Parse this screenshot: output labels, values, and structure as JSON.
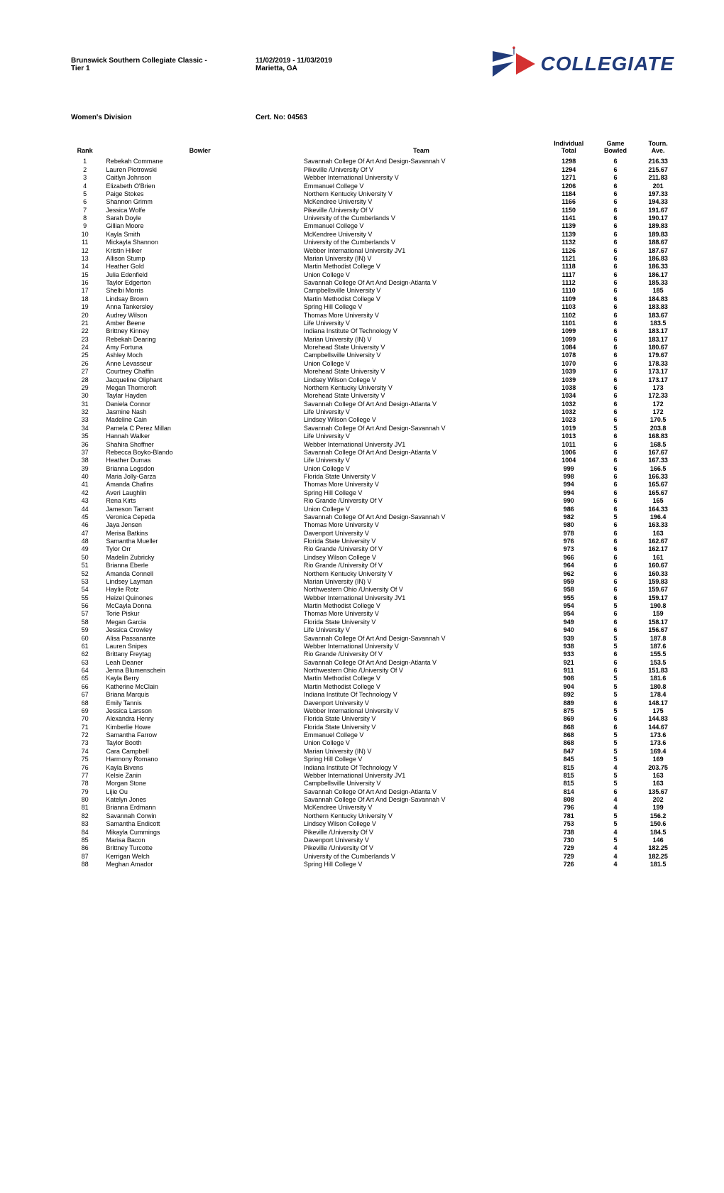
{
  "header": {
    "event_name_left": "Brunswick Southern Collegiate Classic -",
    "event_dates": "11/02/2019 - 11/03/2019",
    "tier_left": "Tier 1",
    "location": "Marietta, GA",
    "division": "Women's Division",
    "cert_label": "Cert. No: 04563",
    "logo_text": "COLLEGIATE"
  },
  "cols": {
    "rank": "Rank",
    "bowler": "Bowler",
    "team": "Team",
    "total_l1": "Individual",
    "total_l2": "Total",
    "games_l1": "Game",
    "games_l2": "Bowled",
    "ave_l1": "Tourn.",
    "ave_l2": "Ave."
  },
  "rows": [
    {
      "r": "1",
      "b": "Rebekah Commane",
      "t": "Savannah College Of Art And Design-Savannah V",
      "tot": "1298",
      "g": "6",
      "a": "216.33"
    },
    {
      "r": "2",
      "b": "Lauren Piotrowski",
      "t": "Pikeville /University Of V",
      "tot": "1294",
      "g": "6",
      "a": "215.67"
    },
    {
      "r": "3",
      "b": "Caitlyn Johnson",
      "t": "Webber International University V",
      "tot": "1271",
      "g": "6",
      "a": "211.83"
    },
    {
      "r": "4",
      "b": "Elizabeth O'Brien",
      "t": "Emmanuel College V",
      "tot": "1206",
      "g": "6",
      "a": "201"
    },
    {
      "r": "5",
      "b": "Paige Stokes",
      "t": "Northern Kentucky University V",
      "tot": "1184",
      "g": "6",
      "a": "197.33"
    },
    {
      "r": "6",
      "b": "Shannon Grimm",
      "t": "McKendree University V",
      "tot": "1166",
      "g": "6",
      "a": "194.33"
    },
    {
      "r": "7",
      "b": "Jessica Wolfe",
      "t": "Pikeville /University Of V",
      "tot": "1150",
      "g": "6",
      "a": "191.67"
    },
    {
      "r": "8",
      "b": "Sarah Doyle",
      "t": "University of the Cumberlands V",
      "tot": "1141",
      "g": "6",
      "a": "190.17"
    },
    {
      "r": "9",
      "b": "Gillian Moore",
      "t": "Emmanuel College V",
      "tot": "1139",
      "g": "6",
      "a": "189.83"
    },
    {
      "r": "10",
      "b": "Kayla Smith",
      "t": "McKendree University V",
      "tot": "1139",
      "g": "6",
      "a": "189.83"
    },
    {
      "r": "11",
      "b": "Mickayla Shannon",
      "t": "University of the Cumberlands V",
      "tot": "1132",
      "g": "6",
      "a": "188.67"
    },
    {
      "r": "12",
      "b": "Kristin Hilker",
      "t": "Webber International University JV1",
      "tot": "1126",
      "g": "6",
      "a": "187.67"
    },
    {
      "r": "13",
      "b": "Allison Stump",
      "t": "Marian University (IN) V",
      "tot": "1121",
      "g": "6",
      "a": "186.83"
    },
    {
      "r": "14",
      "b": "Heather Gold",
      "t": "Martin Methodist College V",
      "tot": "1118",
      "g": "6",
      "a": "186.33"
    },
    {
      "r": "15",
      "b": "Julia Edenfield",
      "t": "Union College V",
      "tot": "1117",
      "g": "6",
      "a": "186.17"
    },
    {
      "r": "16",
      "b": "Taylor Edgerton",
      "t": "Savannah College Of Art And Design-Atlanta V",
      "tot": "1112",
      "g": "6",
      "a": "185.33"
    },
    {
      "r": "17",
      "b": "Shelbi Morris",
      "t": "Campbellsville University V",
      "tot": "1110",
      "g": "6",
      "a": "185"
    },
    {
      "r": "18",
      "b": "Lindsay Brown",
      "t": "Martin Methodist College V",
      "tot": "1109",
      "g": "6",
      "a": "184.83"
    },
    {
      "r": "19",
      "b": "Anna Tankersley",
      "t": "Spring Hill College V",
      "tot": "1103",
      "g": "6",
      "a": "183.83"
    },
    {
      "r": "20",
      "b": "Audrey Wilson",
      "t": "Thomas More University V",
      "tot": "1102",
      "g": "6",
      "a": "183.67"
    },
    {
      "r": "21",
      "b": "Amber Beene",
      "t": "Life University V",
      "tot": "1101",
      "g": "6",
      "a": "183.5"
    },
    {
      "r": "22",
      "b": "Brittney Kinney",
      "t": "Indiana Institute Of Technology V",
      "tot": "1099",
      "g": "6",
      "a": "183.17"
    },
    {
      "r": "23",
      "b": "Rebekah Dearing",
      "t": "Marian University (IN) V",
      "tot": "1099",
      "g": "6",
      "a": "183.17"
    },
    {
      "r": "24",
      "b": "Amy Fortuna",
      "t": "Morehead State University V",
      "tot": "1084",
      "g": "6",
      "a": "180.67"
    },
    {
      "r": "25",
      "b": "Ashley Moch",
      "t": "Campbellsville University V",
      "tot": "1078",
      "g": "6",
      "a": "179.67"
    },
    {
      "r": "26",
      "b": "Anne Levasseur",
      "t": "Union College V",
      "tot": "1070",
      "g": "6",
      "a": "178.33"
    },
    {
      "r": "27",
      "b": "Courtney Chaffin",
      "t": "Morehead State University V",
      "tot": "1039",
      "g": "6",
      "a": "173.17"
    },
    {
      "r": "28",
      "b": "Jacqueline Oliphant",
      "t": "Lindsey Wilson College V",
      "tot": "1039",
      "g": "6",
      "a": "173.17"
    },
    {
      "r": "29",
      "b": "Megan Thorncroft",
      "t": "Northern Kentucky University V",
      "tot": "1038",
      "g": "6",
      "a": "173"
    },
    {
      "r": "30",
      "b": "Taylar Hayden",
      "t": "Morehead State University V",
      "tot": "1034",
      "g": "6",
      "a": "172.33"
    },
    {
      "r": "31",
      "b": "Daniela Connor",
      "t": "Savannah College Of Art And Design-Atlanta V",
      "tot": "1032",
      "g": "6",
      "a": "172"
    },
    {
      "r": "32",
      "b": "Jasmine Nash",
      "t": "Life University V",
      "tot": "1032",
      "g": "6",
      "a": "172"
    },
    {
      "r": "33",
      "b": "Madeline Cain",
      "t": "Lindsey Wilson College V",
      "tot": "1023",
      "g": "6",
      "a": "170.5"
    },
    {
      "r": "34",
      "b": "Pamela C Perez Millan",
      "t": "Savannah College Of Art And Design-Savannah V",
      "tot": "1019",
      "g": "5",
      "a": "203.8"
    },
    {
      "r": "35",
      "b": "Hannah Walker",
      "t": "Life University V",
      "tot": "1013",
      "g": "6",
      "a": "168.83"
    },
    {
      "r": "36",
      "b": "Shahira Shoffner",
      "t": "Webber International University JV1",
      "tot": "1011",
      "g": "6",
      "a": "168.5"
    },
    {
      "r": "37",
      "b": "Rebecca Boyko-Blando",
      "t": "Savannah College Of Art And Design-Atlanta V",
      "tot": "1006",
      "g": "6",
      "a": "167.67"
    },
    {
      "r": "38",
      "b": "Heather Dumas",
      "t": "Life University V",
      "tot": "1004",
      "g": "6",
      "a": "167.33"
    },
    {
      "r": "39",
      "b": "Brianna Logsdon",
      "t": "Union College V",
      "tot": "999",
      "g": "6",
      "a": "166.5"
    },
    {
      "r": "40",
      "b": "Maria Jolly-Garza",
      "t": "Florida State University V",
      "tot": "998",
      "g": "6",
      "a": "166.33"
    },
    {
      "r": "41",
      "b": "Amanda Chafins",
      "t": "Thomas More University V",
      "tot": "994",
      "g": "6",
      "a": "165.67"
    },
    {
      "r": "42",
      "b": "Averi Laughlin",
      "t": "Spring Hill College V",
      "tot": "994",
      "g": "6",
      "a": "165.67"
    },
    {
      "r": "43",
      "b": "Rena Kirts",
      "t": "Rio Grande /University Of V",
      "tot": "990",
      "g": "6",
      "a": "165"
    },
    {
      "r": "44",
      "b": "Jameson Tarrant",
      "t": "Union College V",
      "tot": "986",
      "g": "6",
      "a": "164.33"
    },
    {
      "r": "45",
      "b": "Veronica Cepeda",
      "t": "Savannah College Of Art And Design-Savannah V",
      "tot": "982",
      "g": "5",
      "a": "196.4"
    },
    {
      "r": "46",
      "b": "Jaya Jensen",
      "t": "Thomas More University V",
      "tot": "980",
      "g": "6",
      "a": "163.33"
    },
    {
      "r": "47",
      "b": "Merisa Batkins",
      "t": "Davenport University V",
      "tot": "978",
      "g": "6",
      "a": "163"
    },
    {
      "r": "48",
      "b": "Samantha Mueller",
      "t": "Florida State University V",
      "tot": "976",
      "g": "6",
      "a": "162.67"
    },
    {
      "r": "49",
      "b": "Tylor Orr",
      "t": "Rio Grande /University Of V",
      "tot": "973",
      "g": "6",
      "a": "162.17"
    },
    {
      "r": "50",
      "b": "Madelin Zubricky",
      "t": "Lindsey Wilson College V",
      "tot": "966",
      "g": "6",
      "a": "161"
    },
    {
      "r": "51",
      "b": "Brianna Eberle",
      "t": "Rio Grande /University Of V",
      "tot": "964",
      "g": "6",
      "a": "160.67"
    },
    {
      "r": "52",
      "b": "Amanda Connell",
      "t": "Northern Kentucky University V",
      "tot": "962",
      "g": "6",
      "a": "160.33"
    },
    {
      "r": "53",
      "b": "Lindsey Layman",
      "t": "Marian University (IN) V",
      "tot": "959",
      "g": "6",
      "a": "159.83"
    },
    {
      "r": "54",
      "b": "Haylie Rotz",
      "t": "Northwestern Ohio /University Of V",
      "tot": "958",
      "g": "6",
      "a": "159.67"
    },
    {
      "r": "55",
      "b": "Heizel Quinones",
      "t": "Webber International University JV1",
      "tot": "955",
      "g": "6",
      "a": "159.17"
    },
    {
      "r": "56",
      "b": "McCayla Donna",
      "t": "Martin Methodist College V",
      "tot": "954",
      "g": "5",
      "a": "190.8"
    },
    {
      "r": "57",
      "b": "Torie Piskur",
      "t": "Thomas More University V",
      "tot": "954",
      "g": "6",
      "a": "159"
    },
    {
      "r": "58",
      "b": "Megan Garcia",
      "t": "Florida State University V",
      "tot": "949",
      "g": "6",
      "a": "158.17"
    },
    {
      "r": "59",
      "b": "Jessica Crowley",
      "t": "Life University V",
      "tot": "940",
      "g": "6",
      "a": "156.67"
    },
    {
      "r": "60",
      "b": "Alisa Passanante",
      "t": "Savannah College Of Art And Design-Savannah V",
      "tot": "939",
      "g": "5",
      "a": "187.8"
    },
    {
      "r": "61",
      "b": "Lauren Snipes",
      "t": "Webber International University V",
      "tot": "938",
      "g": "5",
      "a": "187.6"
    },
    {
      "r": "62",
      "b": "Brittany Freytag",
      "t": "Rio Grande /University Of V",
      "tot": "933",
      "g": "6",
      "a": "155.5"
    },
    {
      "r": "63",
      "b": "Leah Deaner",
      "t": "Savannah College Of Art And Design-Atlanta V",
      "tot": "921",
      "g": "6",
      "a": "153.5"
    },
    {
      "r": "64",
      "b": "Jenna Blumenschein",
      "t": "Northwestern Ohio /University Of V",
      "tot": "911",
      "g": "6",
      "a": "151.83"
    },
    {
      "r": "65",
      "b": "Kayla Berry",
      "t": "Martin Methodist College V",
      "tot": "908",
      "g": "5",
      "a": "181.6"
    },
    {
      "r": "66",
      "b": "Katherine McClain",
      "t": "Martin Methodist College V",
      "tot": "904",
      "g": "5",
      "a": "180.8"
    },
    {
      "r": "67",
      "b": "Briana Marquis",
      "t": "Indiana Institute Of Technology V",
      "tot": "892",
      "g": "5",
      "a": "178.4"
    },
    {
      "r": "68",
      "b": "Emily Tannis",
      "t": "Davenport University V",
      "tot": "889",
      "g": "6",
      "a": "148.17"
    },
    {
      "r": "69",
      "b": "Jessica Larsson",
      "t": "Webber International University V",
      "tot": "875",
      "g": "5",
      "a": "175"
    },
    {
      "r": "70",
      "b": "Alexandra Henry",
      "t": "Florida State University V",
      "tot": "869",
      "g": "6",
      "a": "144.83"
    },
    {
      "r": "71",
      "b": "Kimberlie Howe",
      "t": "Florida State University V",
      "tot": "868",
      "g": "6",
      "a": "144.67"
    },
    {
      "r": "72",
      "b": "Samantha Farrow",
      "t": "Emmanuel College V",
      "tot": "868",
      "g": "5",
      "a": "173.6"
    },
    {
      "r": "73",
      "b": "Taylor Booth",
      "t": "Union College V",
      "tot": "868",
      "g": "5",
      "a": "173.6"
    },
    {
      "r": "74",
      "b": "Cara Campbell",
      "t": "Marian University (IN) V",
      "tot": "847",
      "g": "5",
      "a": "169.4"
    },
    {
      "r": "75",
      "b": "Harmony Romano",
      "t": "Spring Hill College V",
      "tot": "845",
      "g": "5",
      "a": "169"
    },
    {
      "r": "76",
      "b": "Kayla Bivens",
      "t": "Indiana Institute Of Technology V",
      "tot": "815",
      "g": "4",
      "a": "203.75"
    },
    {
      "r": "77",
      "b": "Kelsie Zanin",
      "t": "Webber International University JV1",
      "tot": "815",
      "g": "5",
      "a": "163"
    },
    {
      "r": "78",
      "b": "Morgan Stone",
      "t": "Campbellsville University V",
      "tot": "815",
      "g": "5",
      "a": "163"
    },
    {
      "r": "79",
      "b": "Lijie Ou",
      "t": "Savannah College Of Art And Design-Atlanta V",
      "tot": "814",
      "g": "6",
      "a": "135.67"
    },
    {
      "r": "80",
      "b": "Katelyn Jones",
      "t": "Savannah College Of Art And Design-Savannah V",
      "tot": "808",
      "g": "4",
      "a": "202"
    },
    {
      "r": "81",
      "b": "Brianna Erdmann",
      "t": "McKendree University V",
      "tot": "796",
      "g": "4",
      "a": "199"
    },
    {
      "r": "82",
      "b": "Savannah Corwin",
      "t": "Northern Kentucky University V",
      "tot": "781",
      "g": "5",
      "a": "156.2"
    },
    {
      "r": "83",
      "b": "Samantha Endicott",
      "t": "Lindsey Wilson College V",
      "tot": "753",
      "g": "5",
      "a": "150.6"
    },
    {
      "r": "84",
      "b": "Mikayla Cummings",
      "t": "Pikeville /University Of V",
      "tot": "738",
      "g": "4",
      "a": "184.5"
    },
    {
      "r": "85",
      "b": "Marisa Bacon",
      "t": "Davenport University V",
      "tot": "730",
      "g": "5",
      "a": "146"
    },
    {
      "r": "86",
      "b": "Brittney Turcotte",
      "t": "Pikeville /University Of V",
      "tot": "729",
      "g": "4",
      "a": "182.25"
    },
    {
      "r": "87",
      "b": "Kerrigan Welch",
      "t": "University of the Cumberlands V",
      "tot": "729",
      "g": "4",
      "a": "182.25"
    },
    {
      "r": "88",
      "b": "Meghan Amador",
      "t": "Spring Hill College V",
      "tot": "726",
      "g": "4",
      "a": "181.5"
    }
  ]
}
